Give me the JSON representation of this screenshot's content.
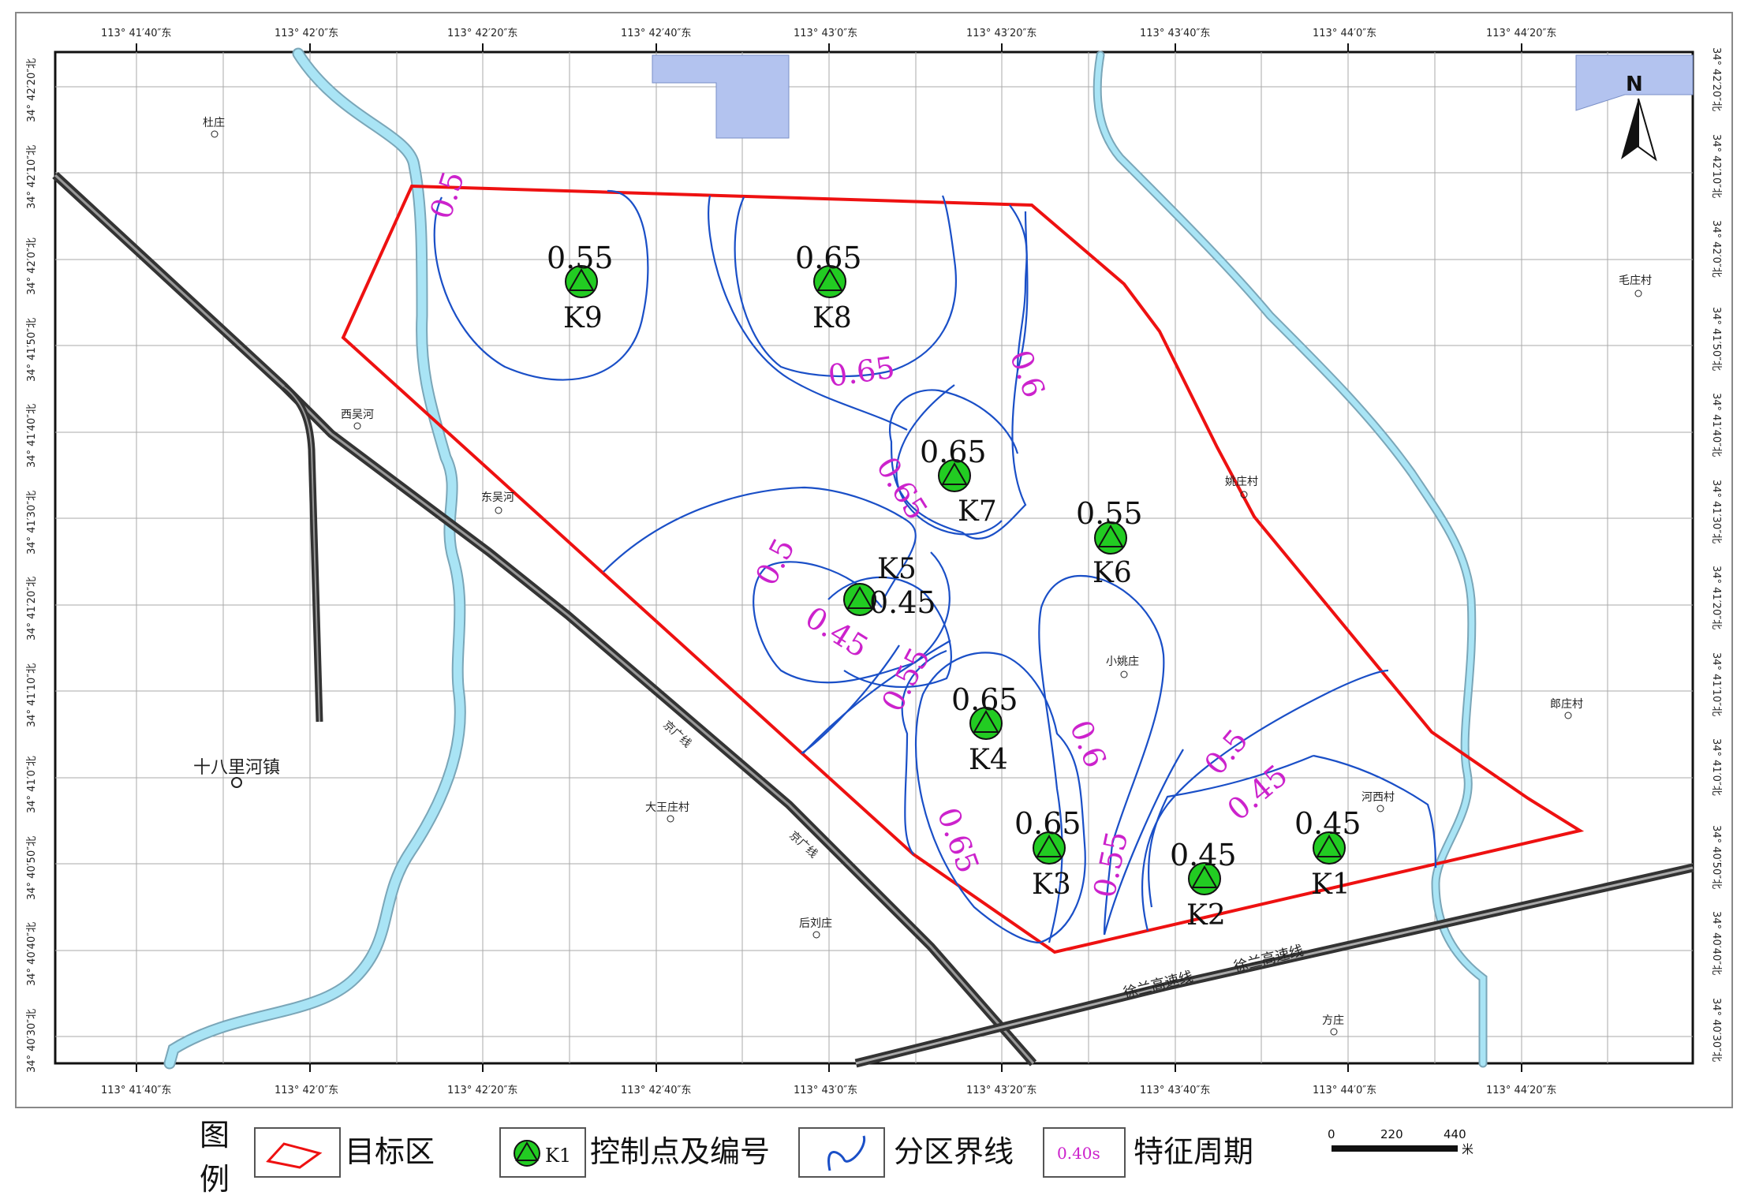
{
  "top_labels": [
    "113° 41′40″东",
    "113° 42′0″东",
    "113° 42′20″东",
    "113° 42′40″东",
    "113° 43′0″东",
    "113° 43′20″东",
    "113° 43′40″东",
    "113° 44′0″东",
    "113° 44′20″东"
  ],
  "bottom_labels": [
    "113° 41′40″东",
    "113° 42′0″东",
    "113° 42′20″东",
    "113° 42′40″东",
    "113° 43′0″东",
    "113° 43′20″东",
    "113° 43′40″东",
    "113° 44′0″东",
    "113° 44′20″东"
  ],
  "left_labels": [
    "34° 42′20″北",
    "34° 42′10″北",
    "34° 42′0″北",
    "34° 41′50″北",
    "34° 41′40″北",
    "34° 41′30″北",
    "34° 41′20″北",
    "34° 41′10″北",
    "34° 41′0″北",
    "34° 40′50″北",
    "34° 40′40″北",
    "34° 40′30″北"
  ],
  "right_labels": [
    "34° 42′20″北",
    "34° 42′10″北",
    "34° 42′0″北",
    "34° 41′50″北",
    "34° 41′40″北",
    "34° 41′30″北",
    "34° 41′20″北",
    "34° 41′10″北",
    "34° 41′0″北",
    "34° 40′50″北",
    "34° 40′40″北",
    "34° 40′30″北"
  ],
  "north": "N",
  "places": [
    "杜庄",
    "西吴河",
    "东吴河",
    "十八里河镇",
    "大王庄村",
    "后刘庄",
    "小姚庄",
    "姚庄村",
    "毛庄村",
    "郎庄村",
    "河西村",
    "方庄"
  ],
  "rail_labels": [
    "京广线",
    "京广线"
  ],
  "road_labels": [
    "徐兰高速线",
    "徐兰高速线"
  ],
  "points": [
    {
      "id": "K9",
      "value": "0.55"
    },
    {
      "id": "K8",
      "value": "0.65"
    },
    {
      "id": "K7",
      "value": "0.65"
    },
    {
      "id": "K6",
      "value": "0.55"
    },
    {
      "id": "K5",
      "value": "0.45"
    },
    {
      "id": "K4",
      "value": "0.65"
    },
    {
      "id": "K3",
      "value": "0.65"
    },
    {
      "id": "K2",
      "value": "0.45"
    },
    {
      "id": "K1",
      "value": "0.45"
    }
  ],
  "contour_labels": [
    "0.5",
    "0.65",
    "0.6",
    "0.65",
    "0.5",
    "0.45",
    "0.55",
    "0.6",
    "0.65",
    "0.55",
    "0.5",
    "0.45"
  ],
  "legend": {
    "title_1": "图",
    "title_2": "例",
    "target_area": "目标区",
    "sample_point_id": "K1",
    "control_point": "控制点及编号",
    "boundary": "分区界线",
    "sample_period": "0.40s",
    "char_period": "特征周期"
  },
  "scale": {
    "ticks": [
      "0",
      "220",
      "440"
    ],
    "unit": "米"
  },
  "colors": {
    "target": "#ee1111",
    "contour": "#1a4fc7",
    "label": "#cc22cc",
    "point": "#22cc22",
    "water": "#a9e4f5",
    "pond": "#b3c3ef"
  }
}
